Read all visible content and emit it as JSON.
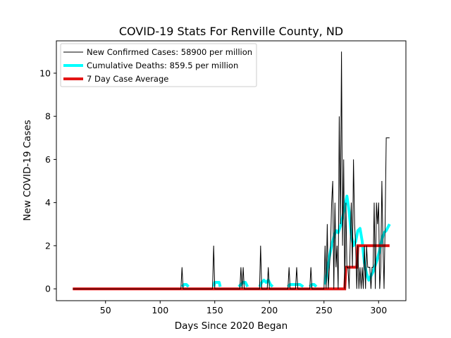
{
  "chart_data": {
    "type": "line",
    "title": "COVID-19 Stats For Renville County, ND",
    "xlabel": "Days Since 2020 Began",
    "ylabel": "New COVID-19 Cases",
    "xlim": [
      5,
      325
    ],
    "ylim": [
      -0.55,
      11.5
    ],
    "x_ticks": [
      50,
      100,
      150,
      200,
      250,
      300
    ],
    "y_ticks": [
      0,
      2,
      4,
      6,
      8,
      10
    ],
    "grid": false,
    "legend": {
      "placement": "top-left",
      "entries": [
        "New Confirmed Cases: 58900 per million",
        "Cumulative Deaths: 859.5 per million",
        "7 Day Case Average"
      ]
    },
    "series": [
      {
        "name": "New Confirmed Cases: 58900 per million",
        "color": "#000000",
        "x": [
          20,
          119,
          120,
          121,
          148,
          149,
          150,
          173,
          174,
          175,
          176,
          177,
          178,
          191,
          192,
          193,
          198,
          199,
          200,
          217,
          218,
          219,
          224,
          225,
          226,
          237,
          238,
          239,
          250,
          251,
          252,
          253,
          254,
          255,
          256,
          257,
          258,
          259,
          260,
          261,
          262,
          263,
          264,
          265,
          266,
          267,
          268,
          269,
          270,
          271,
          272,
          273,
          274,
          275,
          276,
          277,
          278,
          279,
          280,
          281,
          282,
          283,
          284,
          285,
          286,
          287,
          288,
          289,
          290,
          291,
          292,
          293,
          294,
          295,
          296,
          297,
          298,
          299,
          300,
          301,
          302,
          303,
          304,
          305,
          306,
          307,
          308,
          309,
          310
        ],
        "y": [
          0,
          0,
          1,
          0,
          0,
          2,
          0,
          0,
          1,
          0,
          1,
          0,
          0,
          0,
          2,
          0,
          0,
          1,
          0,
          0,
          1,
          0,
          0,
          1,
          0,
          0,
          1,
          0,
          0,
          2,
          0,
          3,
          0,
          1,
          2,
          4,
          5,
          0,
          4,
          1,
          2,
          0,
          8,
          3,
          11,
          2,
          6,
          0,
          4,
          1,
          1,
          0,
          2,
          4,
          1,
          6,
          3,
          2,
          0,
          2,
          0,
          1,
          0,
          1,
          0,
          2,
          0,
          2,
          1,
          1,
          1,
          0,
          1,
          1,
          4,
          0,
          4,
          3,
          4,
          0,
          1,
          5,
          2,
          0,
          3,
          7,
          7,
          7,
          7
        ]
      },
      {
        "name": "Cumulative Deaths: 859.5 per million",
        "color": "#00ffff",
        "segments": [
          {
            "x": [
              120,
              122,
              124,
              126
            ],
            "y": [
              0.1,
              0.2,
              0.2,
              0.1
            ]
          },
          {
            "x": [
              149,
              150,
              152,
              154,
              155
            ],
            "y": [
              0.1,
              0.3,
              0.3,
              0.3,
              0.1
            ]
          },
          {
            "x": [
              172,
              174,
              176,
              178,
              180
            ],
            "y": [
              0.1,
              0.2,
              0.3,
              0.3,
              0.1
            ]
          },
          {
            "x": [
              191,
              193,
              195,
              197,
              199,
              201,
              203
            ],
            "y": [
              0.1,
              0.3,
              0.4,
              0.3,
              0.4,
              0.2,
              0.1
            ]
          },
          {
            "x": [
              217,
              219,
              222,
              225,
              228,
              231
            ],
            "y": [
              0.1,
              0.2,
              0.2,
              0.2,
              0.2,
              0.1
            ]
          },
          {
            "x": [
              237,
              239,
              241,
              243
            ],
            "y": [
              0.1,
              0.2,
              0.2,
              0.1
            ]
          },
          {
            "x": [
              251,
              253,
              255,
              257,
              259,
              261,
              263,
              265,
              267,
              269,
              271,
              273,
              275,
              277,
              279,
              281,
              283,
              285,
              287,
              289,
              291,
              293,
              295,
              297,
              299,
              301,
              303,
              305,
              307,
              309,
              310
            ],
            "y": [
              0.2,
              0.9,
              1.5,
              2.0,
              2.4,
              2.7,
              2.6,
              2.9,
              3.3,
              3.8,
              4.3,
              3.6,
              2.5,
              2.0,
              2.2,
              2.7,
              2.8,
              2.2,
              1.2,
              0.7,
              0.4,
              0.6,
              0.8,
              1.1,
              1.4,
              1.8,
              2.3,
              2.6,
              2.7,
              2.9,
              3.0
            ]
          }
        ]
      },
      {
        "name": "7 Day Case Average",
        "color": "#e31414",
        "x": [
          20,
          269,
          270,
          280,
          281,
          310
        ],
        "y": [
          0,
          0,
          1,
          1,
          2,
          2
        ]
      }
    ]
  }
}
